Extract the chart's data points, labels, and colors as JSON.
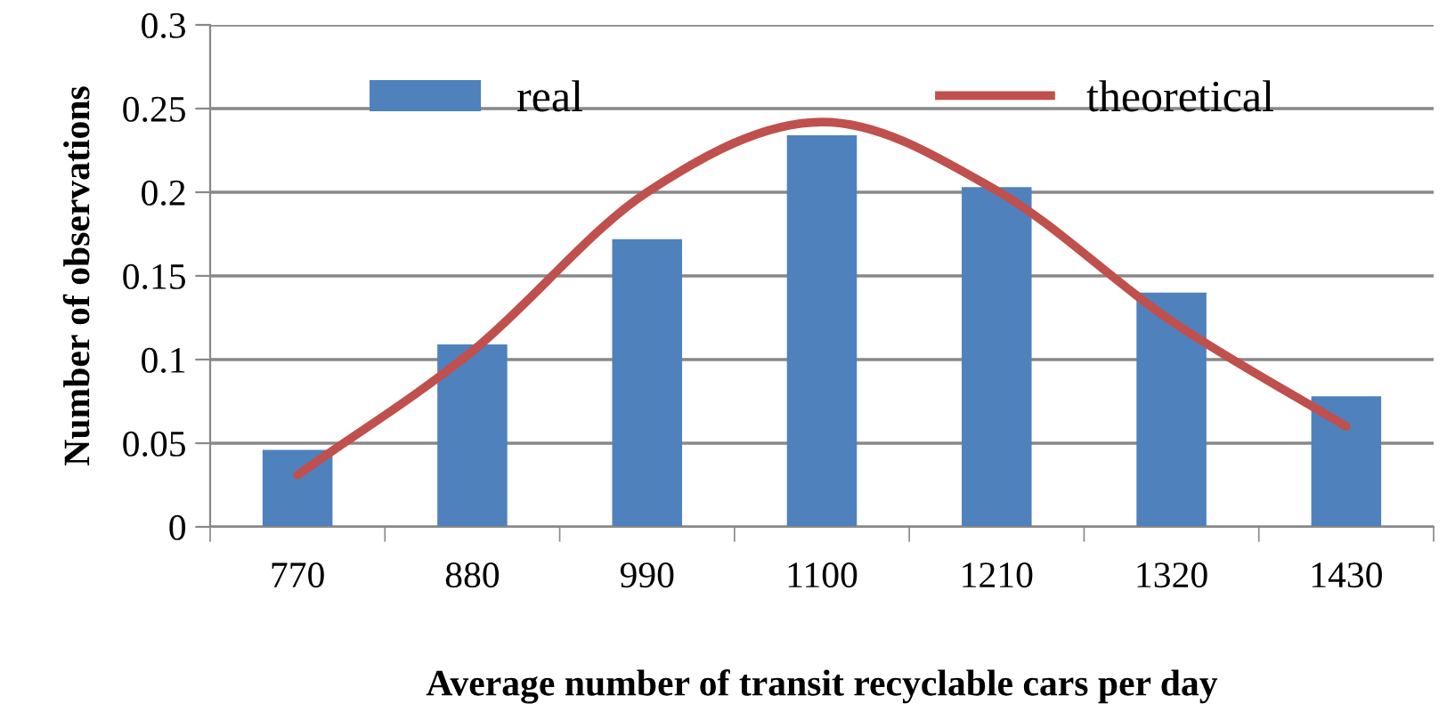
{
  "chart_data": {
    "type": "bar",
    "xlabel": "Average number of transit recyclable cars per day",
    "ylabel": "Number of observations",
    "categories": [
      "770",
      "880",
      "990",
      "1100",
      "1210",
      "1320",
      "1430"
    ],
    "series": [
      {
        "name": "real",
        "color": "#4f81bd",
        "values": [
          0.046,
          0.109,
          0.172,
          0.234,
          0.203,
          0.14,
          0.078
        ]
      },
      {
        "name": "theoretical",
        "type": "line",
        "color": "#c0504d",
        "values": [
          0.031,
          0.105,
          0.2,
          0.242,
          0.201,
          0.123,
          0.06
        ]
      }
    ],
    "ylim": [
      0,
      0.3
    ],
    "yticks": [
      0,
      0.05,
      0.1,
      0.15,
      0.2,
      0.25,
      0.3
    ],
    "grid": "y",
    "legend": "top",
    "line_style": "solid",
    "marker": "none"
  }
}
